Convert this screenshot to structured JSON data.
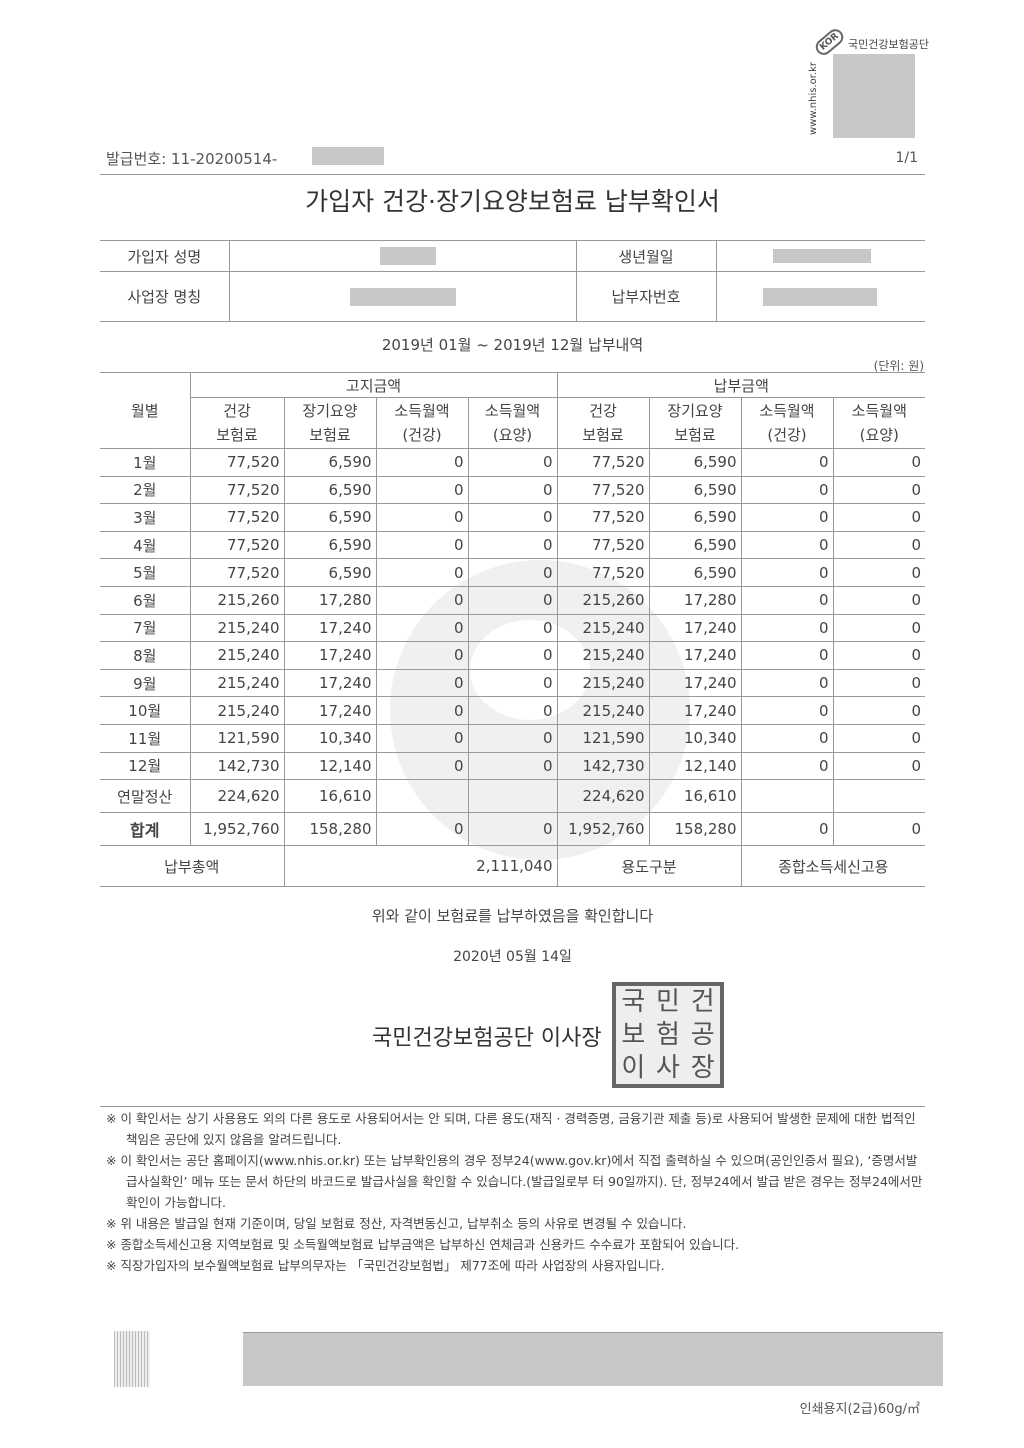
{
  "logo": {
    "org": "국민건강보험공단",
    "url": "www.nhis.or.kr",
    "badge": "KOR"
  },
  "header": {
    "issue_number": "발급번호: 11-20200514-",
    "page": "1/1"
  },
  "title": "가입자 건강·장기요양보험료 납부확인서",
  "info": {
    "name_label": "가입자 성명",
    "birth_label": "생년월일",
    "workplace_label": "사업장 명칭",
    "payer_no_label": "납부자번호"
  },
  "period": "2019년 01월 ~ 2019년 12월 납부내역",
  "unit": "(단위: 원)",
  "table": {
    "month_header": "월별",
    "group_notice": "고지금액",
    "group_paid": "납부금액",
    "sub_headers": [
      [
        "건강",
        "보험료"
      ],
      [
        "장기요양",
        "보험료"
      ],
      [
        "소득월액",
        "(건강)"
      ],
      [
        "소득월액",
        "(요양)"
      ],
      [
        "건강",
        "보험료"
      ],
      [
        "장기요양",
        "보험료"
      ],
      [
        "소득월액",
        "(건강)"
      ],
      [
        "소득월액",
        "(요양)"
      ]
    ],
    "rows": [
      [
        "1월",
        "77,520",
        "6,590",
        "0",
        "0",
        "77,520",
        "6,590",
        "0",
        "0"
      ],
      [
        "2월",
        "77,520",
        "6,590",
        "0",
        "0",
        "77,520",
        "6,590",
        "0",
        "0"
      ],
      [
        "3월",
        "77,520",
        "6,590",
        "0",
        "0",
        "77,520",
        "6,590",
        "0",
        "0"
      ],
      [
        "4월",
        "77,520",
        "6,590",
        "0",
        "0",
        "77,520",
        "6,590",
        "0",
        "0"
      ],
      [
        "5월",
        "77,520",
        "6,590",
        "0",
        "0",
        "77,520",
        "6,590",
        "0",
        "0"
      ],
      [
        "6월",
        "215,260",
        "17,280",
        "0",
        "0",
        "215,260",
        "17,280",
        "0",
        "0"
      ],
      [
        "7월",
        "215,240",
        "17,240",
        "0",
        "0",
        "215,240",
        "17,240",
        "0",
        "0"
      ],
      [
        "8월",
        "215,240",
        "17,240",
        "0",
        "0",
        "215,240",
        "17,240",
        "0",
        "0"
      ],
      [
        "9월",
        "215,240",
        "17,240",
        "0",
        "0",
        "215,240",
        "17,240",
        "0",
        "0"
      ],
      [
        "10월",
        "215,240",
        "17,240",
        "0",
        "0",
        "215,240",
        "17,240",
        "0",
        "0"
      ],
      [
        "11월",
        "121,590",
        "10,340",
        "0",
        "0",
        "121,590",
        "10,340",
        "0",
        "0"
      ],
      [
        "12월",
        "142,730",
        "12,140",
        "0",
        "0",
        "142,730",
        "12,140",
        "0",
        "0"
      ],
      [
        "연말정산",
        "224,620",
        "16,610",
        "",
        "",
        "224,620",
        "16,610",
        "",
        ""
      ],
      [
        "합계",
        "1,952,760",
        "158,280",
        "0",
        "0",
        "1,952,760",
        "158,280",
        "0",
        "0"
      ]
    ],
    "total_label": "납부총액",
    "total_value": "2,111,040",
    "purpose_label": "용도구분",
    "purpose_value": "종합소득세신고용"
  },
  "confirm_text": "위와 같이 보험료를 납부하였음을 확인합니다",
  "date": "2020년 05월 14일",
  "issuer": "국민건강보험공단 이사장",
  "seal_text": "국민건강보험공단이사장인",
  "notes": [
    "※ 이 확인서는 상기 사용용도 외의 다른 용도로 사용되어서는 안 되며, 다른 용도(재직 · 경력증명, 금융기관 제출 등)로 사용되어 발생한 문제에 대한 법적인 책임은 공단에 있지 않음을 알려드립니다.",
    "※ 이 확인서는 공단 홈페이지(www.nhis.or.kr) 또는 납부확인용의 경우 정부24(www.gov.kr)에서 직접 출력하실 수 있으며(공인인증서 필요), ‘증명서발급사실확인’ 메뉴 또는 문서 하단의 바코드로 발급사실을 확인할 수 있습니다.(발급일로부 터 90일까지). 단, 정부24에서 발급 받은 경우는 정부24에서만 확인이 가능합니다.",
    "※ 위 내용은 발급일 현재 기준이며, 당일 보험료 정산, 자격변동신고, 납부취소 등의 사유로 변경될 수 있습니다.",
    "※ 종합소득세신고용 지역보험료 및 소득월액보험료 납부금액은 납부하신 연체금과 신용카드 수수료가 포함되어 있습니다.",
    "※ 직장가입자의 보수월액보험료 납부의무자는 「국민건강보험법」 제77조에 따라 사업장의 사용자입니다."
  ],
  "paper_spec": "인쇄용지(2급)60g/㎡"
}
